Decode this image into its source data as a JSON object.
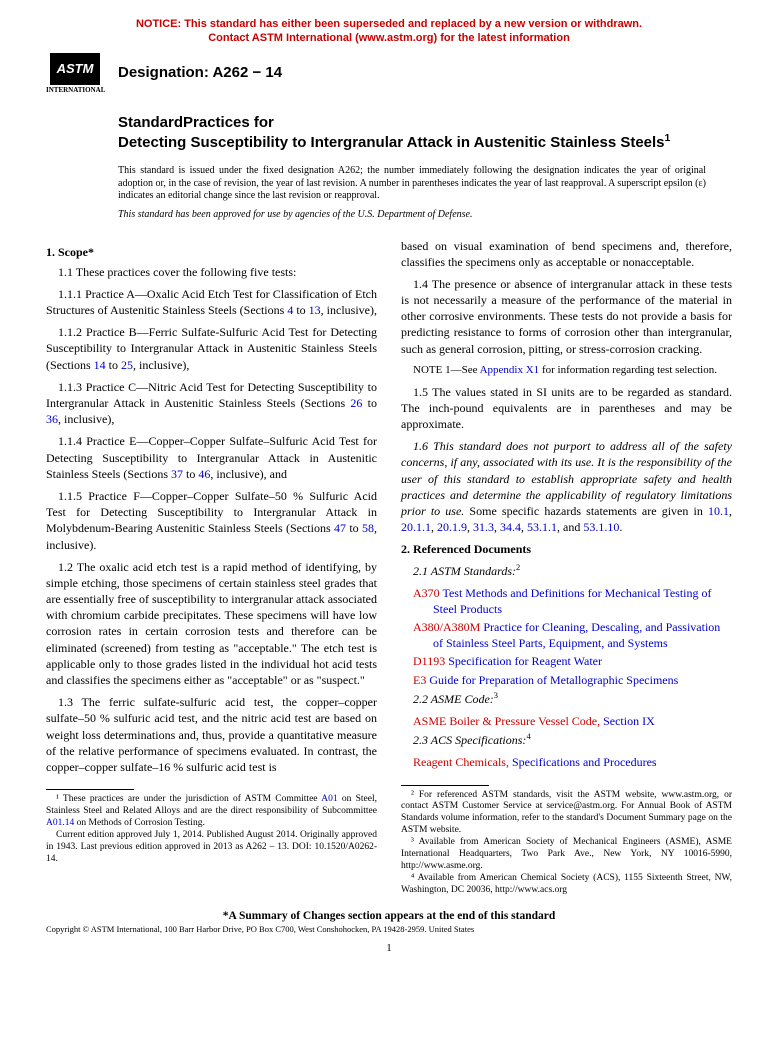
{
  "notice": {
    "line1": "NOTICE: This standard has either been superseded and replaced by a new version or withdrawn.",
    "line2": "Contact ASTM International (www.astm.org) for the latest information",
    "color": "#cc0000"
  },
  "logo": {
    "top": "",
    "mid": "ASTM",
    "bottom": "INTERNATIONAL"
  },
  "designation": "Designation: A262 − 14",
  "title": {
    "kicker": "StandardPractices for",
    "main": "Detecting Susceptibility to Intergranular Attack in Austenitic Stainless Steels",
    "sup": "1"
  },
  "issuance": "This standard is issued under the fixed designation A262; the number immediately following the designation indicates the year of original adoption or, in the case of revision, the year of last revision. A number in parentheses indicates the year of last reapproval. A superscript epsilon (ε) indicates an editorial change since the last revision or reapproval.",
  "approval": "This standard has been approved for use by agencies of the U.S. Department of Defense.",
  "left": {
    "scope_head": "1. Scope*",
    "p1_1": "1.1 These practices cover the following five tests:",
    "p1_1_1a": "1.1.1 Practice A—Oxalic Acid Etch Test for Classification of Etch Structures of Austenitic Stainless Steels (Sections ",
    "p1_1_1b": "4",
    "p1_1_1c": " to ",
    "p1_1_1d": "13",
    "p1_1_1e": ", inclusive),",
    "p1_1_2a": "1.1.2 Practice B—Ferric Sulfate-Sulfuric Acid Test for Detecting Susceptibility to Intergranular Attack in Austenitic Stainless Steels (Sections ",
    "p1_1_2b": "14",
    "p1_1_2c": " to ",
    "p1_1_2d": "25",
    "p1_1_2e": ", inclusive),",
    "p1_1_3a": "1.1.3 Practice C—Nitric Acid Test for Detecting Susceptibility to Intergranular Attack in Austenitic Stainless Steels (Sections ",
    "p1_1_3b": "26",
    "p1_1_3c": " to ",
    "p1_1_3d": "36",
    "p1_1_3e": ", inclusive),",
    "p1_1_4a": "1.1.4 Practice E—Copper–Copper Sulfate–Sulfuric Acid Test for Detecting Susceptibility to Intergranular Attack in Austenitic Stainless Steels (Sections ",
    "p1_1_4b": "37",
    "p1_1_4c": " to ",
    "p1_1_4d": "46",
    "p1_1_4e": ", inclusive), and",
    "p1_1_5a": "1.1.5 Practice F—Copper–Copper Sulfate–50 % Sulfuric Acid Test for Detecting Susceptibility to Intergranular Attack in Molybdenum-Bearing Austenitic Stainless Steels (Sections ",
    "p1_1_5b": "47",
    "p1_1_5c": " to ",
    "p1_1_5d": "58",
    "p1_1_5e": ", inclusive).",
    "p1_2": "1.2 The oxalic acid etch test is a rapid method of identifying, by simple etching, those specimens of certain stainless steel grades that are essentially free of susceptibility to intergranular attack associated with chromium carbide precipitates. These specimens will have low corrosion rates in certain corrosion tests and therefore can be eliminated (screened) from testing as \"acceptable.\" The etch test is applicable only to those grades listed in the individual hot acid tests and classifies the specimens either as \"acceptable\" or as \"suspect.\"",
    "p1_3": "1.3 The ferric sulfate-sulfuric acid test, the copper–copper sulfate–50 % sulfuric acid test, and the nitric acid test are based on weight loss determinations and, thus, provide a quantitative measure of the relative performance of specimens evaluated. In contrast, the copper–copper sulfate–16 % sulfuric acid test is",
    "fn1a": "¹ These practices are under the jurisdiction of ASTM Committee ",
    "fn1b": "A01",
    "fn1c": " on Steel, Stainless Steel and Related Alloys and are the direct responsibility of Subcommittee ",
    "fn1d": "A01.14",
    "fn1e": " on Methods of Corrosion Testing.",
    "fn1f": "Current edition approved July 1, 2014. Published August 2014. Originally approved in 1943. Last previous edition approved in 2013 as A262 – 13. DOI: 10.1520/A0262-14."
  },
  "right": {
    "p1_3cont": "based on visual examination of bend specimens and, therefore, classifies the specimens only as acceptable or nonacceptable.",
    "p1_4": "1.4 The presence or absence of intergranular attack in these tests is not necessarily a measure of the performance of the material in other corrosive environments. These tests do not provide a basis for predicting resistance to forms of corrosion other than intergranular, such as general corrosion, pitting, or stress-corrosion cracking.",
    "note1a": "NOTE 1—See ",
    "note1b": "Appendix X1",
    "note1c": " for information regarding test selection.",
    "p1_5": "1.5 The values stated in SI units are to be regarded as standard. The inch-pound equivalents are in parentheses and may be approximate.",
    "p1_6a": "1.6 This standard does not purport to address all of the safety concerns, if any, associated with its use. It is the responsibility of the user of this standard to establish appropriate safety and health practices and determine the applicability of regulatory limitations prior to use.",
    "p1_6b": " Some specific hazards statements are given in ",
    "haz": [
      "10.1",
      "20.1.1",
      "20.1.9",
      "31.3",
      "34.4",
      "53.1.1",
      "53.1.10"
    ],
    "refs_head": "2. Referenced Documents",
    "r2_1": "2.1 ASTM Standards:",
    "r2_1_sup": "2",
    "refs": [
      {
        "code": "A370",
        "title": "Test Methods and Definitions for Mechanical Testing of Steel Products"
      },
      {
        "code": "A380/A380M",
        "title": "Practice for Cleaning, Descaling, and Passivation of Stainless Steel Parts, Equipment, and Systems"
      },
      {
        "code": "D1193",
        "title": "Specification for Reagent Water"
      },
      {
        "code": "E3",
        "title": "Guide for Preparation of Metallographic Specimens"
      }
    ],
    "r2_2": "2.2 ASME Code:",
    "r2_2_sup": "3",
    "asme_a": "ASME Boiler & Pressure Vessel Code,",
    "asme_b": " Section IX",
    "r2_3": "2.3 ACS Specifications:",
    "r2_3_sup": "4",
    "acs_a": "Reagent Chemicals,",
    "acs_b": " Specifications and Procedures",
    "fn2": "² For referenced ASTM standards, visit the ASTM website, www.astm.org, or contact ASTM Customer Service at service@astm.org. For Annual Book of ASTM Standards volume information, refer to the standard's Document Summary page on the ASTM website.",
    "fn3": "³ Available from American Society of Mechanical Engineers (ASME), ASME International Headquarters, Two Park Ave., New York, NY 10016-5990, http://www.asme.org.",
    "fn4": "⁴ Available from American Chemical Society (ACS), 1155 Sixteenth Street, NW, Washington, DC 20036, http://www.acs.org"
  },
  "summary": "*A Summary of Changes section appears at the end of this standard",
  "copyright": "Copyright © ASTM International, 100 Barr Harbor Drive, PO Box C700, West Conshohocken, PA 19428-2959. United States",
  "pagenum": "1",
  "colors": {
    "link": "#0000cc",
    "red": "#cc0000"
  }
}
